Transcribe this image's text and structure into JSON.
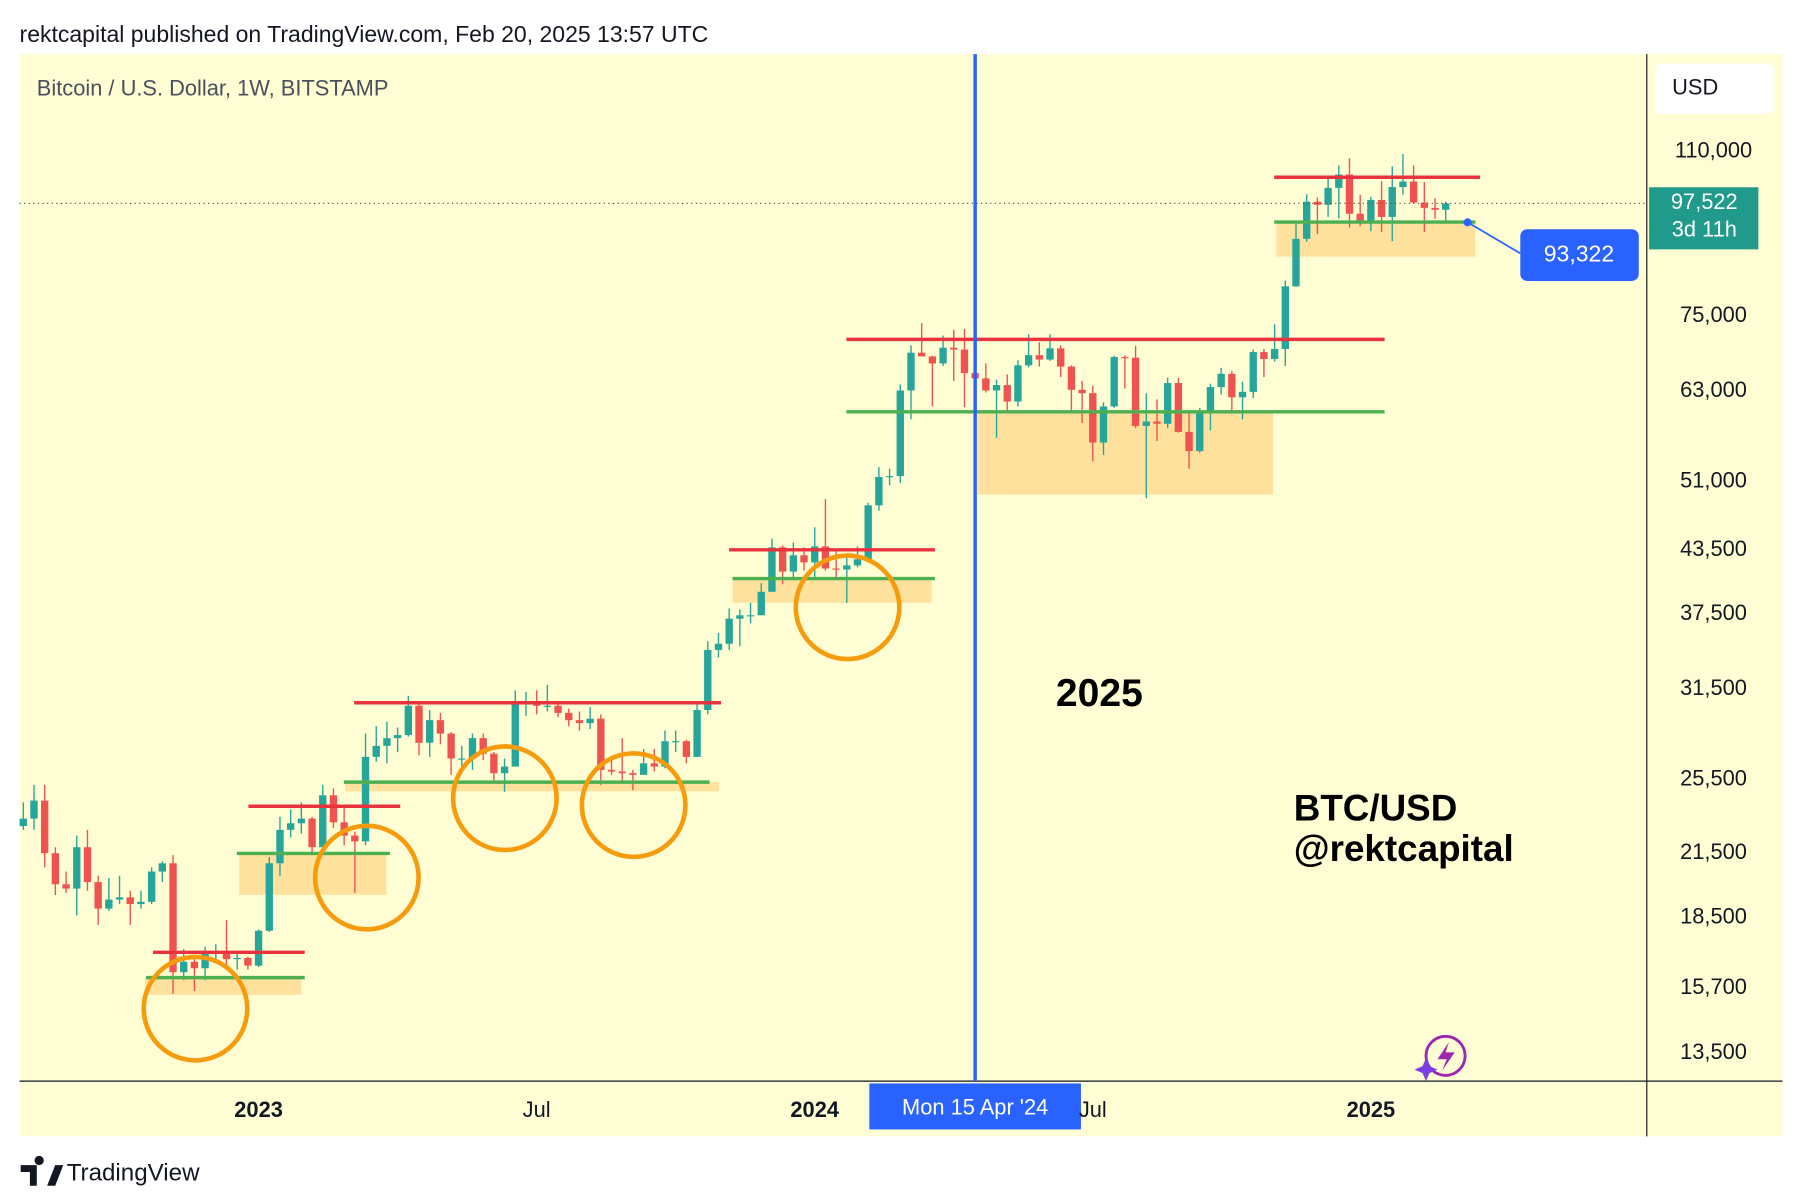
{
  "header": "rektcapital published on TradingView.com, Feb 20, 2025 13:57 UTC",
  "footer": "TradingView",
  "chart_data": {
    "type": "candlestick",
    "title": "Bitcoin / U.S. Dollar, 1W, BITSTAMP",
    "currency": "USD",
    "log_scale": true,
    "up_color": "#26a69a",
    "down_color": "#ef5350",
    "candles": [
      [
        22900,
        24200,
        22700,
        23300
      ],
      [
        23300,
        25200,
        22700,
        24300
      ],
      [
        24300,
        25200,
        20800,
        21500
      ],
      [
        21500,
        21800,
        19500,
        20000
      ],
      [
        20000,
        20600,
        19600,
        19800
      ],
      [
        19800,
        22400,
        18600,
        21800
      ],
      [
        21800,
        22700,
        19700,
        20100
      ],
      [
        20100,
        20400,
        18200,
        18900
      ],
      [
        18900,
        20300,
        18800,
        19300
      ],
      [
        19300,
        20400,
        19100,
        19400
      ],
      [
        19400,
        19700,
        18200,
        19100
      ],
      [
        19100,
        19700,
        18900,
        19200
      ],
      [
        19200,
        20800,
        19100,
        20600
      ],
      [
        20600,
        21100,
        20100,
        21000
      ],
      [
        21000,
        21400,
        15500,
        16300
      ],
      [
        16300,
        17200,
        16000,
        16700
      ],
      [
        16700,
        16800,
        15600,
        16450
      ],
      [
        16450,
        17300,
        16000,
        17100
      ],
      [
        17100,
        17400,
        16700,
        17100
      ],
      [
        17100,
        18400,
        16600,
        16800
      ],
      [
        16800,
        17000,
        16400,
        16850
      ],
      [
        16850,
        16900,
        16400,
        16550
      ],
      [
        16550,
        18000,
        16500,
        17950
      ],
      [
        17950,
        21300,
        17900,
        21000
      ],
      [
        21000,
        23400,
        20400,
        22700
      ],
      [
        22700,
        23800,
        22300,
        23050
      ],
      [
        23050,
        24200,
        22500,
        23300
      ],
      [
        23300,
        23400,
        21400,
        21800
      ],
      [
        21800,
        25200,
        21400,
        24600
      ],
      [
        24600,
        25000,
        22800,
        23100
      ],
      [
        23100,
        23900,
        21900,
        22400
      ],
      [
        22400,
        22600,
        19600,
        22100
      ],
      [
        22100,
        28400,
        21900,
        26900
      ],
      [
        26900,
        28900,
        26600,
        27600
      ],
      [
        27600,
        29200,
        26500,
        28100
      ],
      [
        28100,
        28800,
        27200,
        28300
      ],
      [
        28300,
        31000,
        28200,
        30300
      ],
      [
        30300,
        30500,
        27000,
        27800
      ],
      [
        27800,
        30000,
        26900,
        29300
      ],
      [
        29300,
        29800,
        27700,
        28400
      ],
      [
        28400,
        28500,
        25800,
        26800
      ],
      [
        26800,
        27600,
        26300,
        26800
      ],
      [
        26800,
        28400,
        26100,
        28100
      ],
      [
        28100,
        28400,
        26700,
        27100
      ],
      [
        27100,
        27200,
        25400,
        25900
      ],
      [
        25900,
        26800,
        24800,
        26300
      ],
      [
        26300,
        31400,
        26300,
        30500
      ],
      [
        30500,
        31300,
        29600,
        30600
      ],
      [
        30600,
        31400,
        29700,
        30300
      ],
      [
        30300,
        31800,
        29900,
        30300
      ],
      [
        30300,
        30400,
        29500,
        29800
      ],
      [
        29800,
        30100,
        28900,
        29300
      ],
      [
        29300,
        29900,
        28600,
        29100
      ],
      [
        29100,
        30200,
        28700,
        29400
      ],
      [
        29400,
        29700,
        25200,
        26100
      ],
      [
        26100,
        26800,
        25800,
        26000
      ],
      [
        26000,
        28100,
        25300,
        25900
      ],
      [
        25900,
        26100,
        24900,
        25800
      ],
      [
        25800,
        27400,
        25800,
        26500
      ],
      [
        26500,
        27400,
        26000,
        26300
      ],
      [
        26300,
        28600,
        26200,
        27900
      ],
      [
        27900,
        28600,
        27200,
        27900
      ],
      [
        27900,
        28000,
        26500,
        26900
      ],
      [
        26900,
        30400,
        26900,
        30000
      ],
      [
        30000,
        35200,
        29700,
        34500
      ],
      [
        34500,
        35900,
        33900,
        35000
      ],
      [
        35000,
        38000,
        34500,
        37100
      ],
      [
        37100,
        37900,
        34800,
        37400
      ],
      [
        37400,
        38500,
        36700,
        37400
      ],
      [
        37400,
        40300,
        37400,
        39500
      ],
      [
        39500,
        44700,
        39500,
        43800
      ],
      [
        43800,
        44000,
        40200,
        41400
      ],
      [
        41400,
        44300,
        40600,
        43000
      ],
      [
        43000,
        43800,
        41500,
        42300
      ],
      [
        42300,
        45900,
        40700,
        43900
      ],
      [
        43900,
        49000,
        41500,
        41700
      ],
      [
        41700,
        43600,
        40600,
        41600
      ],
      [
        41600,
        42800,
        38500,
        42000
      ],
      [
        42000,
        43900,
        41800,
        42600
      ],
      [
        42600,
        48600,
        42300,
        48300
      ],
      [
        48300,
        52800,
        47700,
        51600
      ],
      [
        51600,
        52600,
        50600,
        51700
      ],
      [
        51700,
        64000,
        50900,
        63100
      ],
      [
        63100,
        70100,
        59000,
        68900
      ],
      [
        68900,
        73800,
        68500,
        68300
      ],
      [
        68300,
        68400,
        60800,
        67200
      ],
      [
        67200,
        71700,
        66800,
        69700
      ],
      [
        69700,
        72700,
        64500,
        69400
      ],
      [
        69400,
        72800,
        60700,
        65700
      ],
      [
        65700,
        66300,
        59700,
        64900
      ],
      [
        64900,
        67200,
        62800,
        63100
      ],
      [
        63100,
        64700,
        56500,
        63900
      ],
      [
        63900,
        65500,
        60200,
        61500
      ],
      [
        61500,
        67700,
        60800,
        66900
      ],
      [
        66900,
        71900,
        66600,
        68500
      ],
      [
        68500,
        70600,
        66700,
        67800
      ],
      [
        67800,
        71900,
        67600,
        69600
      ],
      [
        69600,
        70100,
        65100,
        66700
      ],
      [
        66700,
        66900,
        60000,
        63200
      ],
      [
        63200,
        64500,
        58500,
        62700
      ],
      [
        62700,
        63800,
        53500,
        55900
      ],
      [
        55900,
        61400,
        54300,
        60800
      ],
      [
        60800,
        68400,
        60600,
        68200
      ],
      [
        68200,
        68500,
        63400,
        68100
      ],
      [
        68100,
        70000,
        57800,
        58100
      ],
      [
        58100,
        62700,
        49100,
        58700
      ],
      [
        58700,
        61800,
        56100,
        58400
      ],
      [
        58400,
        65000,
        57800,
        64200
      ],
      [
        64200,
        65000,
        57200,
        57300
      ],
      [
        57300,
        59800,
        52600,
        54800
      ],
      [
        54800,
        60600,
        54600,
        60000
      ],
      [
        60000,
        64100,
        57500,
        63600
      ],
      [
        63600,
        66500,
        62500,
        65600
      ],
      [
        65600,
        66000,
        59800,
        62100
      ],
      [
        62100,
        64400,
        59000,
        62900
      ],
      [
        62900,
        69400,
        62000,
        69000
      ],
      [
        69000,
        69500,
        65100,
        67900
      ],
      [
        67900,
        73600,
        67500,
        69500
      ],
      [
        69500,
        81500,
        66800,
        80400
      ],
      [
        80400,
        93500,
        80300,
        89800
      ],
      [
        89800,
        99600,
        89200,
        97900
      ],
      [
        97900,
        98900,
        90800,
        97200
      ],
      [
        97200,
        104000,
        94500,
        101100
      ],
      [
        101100,
        106500,
        94200,
        104300
      ],
      [
        104300,
        108300,
        92200,
        95200
      ],
      [
        95200,
        99500,
        92500,
        93700
      ],
      [
        93700,
        99000,
        91400,
        98300
      ],
      [
        98300,
        102700,
        91200,
        94500
      ],
      [
        94500,
        106300,
        89300,
        101300
      ],
      [
        101300,
        109400,
        99500,
        102600
      ],
      [
        102600,
        106500,
        97400,
        97700
      ],
      [
        97700,
        102500,
        91200,
        96500
      ],
      [
        96500,
        98700,
        94100,
        96100
      ],
      [
        96100,
        97900,
        93300,
        97522
      ]
    ],
    "xlim": [
      -0.35,
      151.8
    ],
    "xticks": [
      {
        "value": 22,
        "label": "2023"
      },
      {
        "value": 48,
        "label": "Jul"
      },
      {
        "value": 74,
        "label": "2024"
      },
      {
        "value": 100,
        "label": "Jul"
      },
      {
        "value": 126,
        "label": "2025"
      }
    ],
    "ylim": [
      12650,
      138000
    ],
    "yticks": [
      {
        "value": 110000,
        "label": "110,000"
      },
      {
        "value": 75000,
        "label": "75,000"
      },
      {
        "value": 63000,
        "label": "63,000"
      },
      {
        "value": 51000,
        "label": "51,000"
      },
      {
        "value": 43500,
        "label": "43,500"
      },
      {
        "value": 37500,
        "label": "37,500"
      },
      {
        "value": 31500,
        "label": "31,500"
      },
      {
        "value": 25500,
        "label": "25,500"
      },
      {
        "value": 21500,
        "label": "21,500"
      },
      {
        "value": 18500,
        "label": "18,500"
      },
      {
        "value": 15700,
        "label": "15,700"
      },
      {
        "value": 13500,
        "label": "13,500"
      }
    ],
    "last_price": {
      "value": 97522,
      "label": "97,522"
    },
    "countdown": "3d 11h",
    "marker": {
      "value": 93322,
      "label": "93,322"
    },
    "crosshair": {
      "x": 89,
      "label": "Mon 15 Apr '24"
    },
    "annotations": [
      "2025",
      "BTC/USD",
      "@rektcapital"
    ]
  }
}
